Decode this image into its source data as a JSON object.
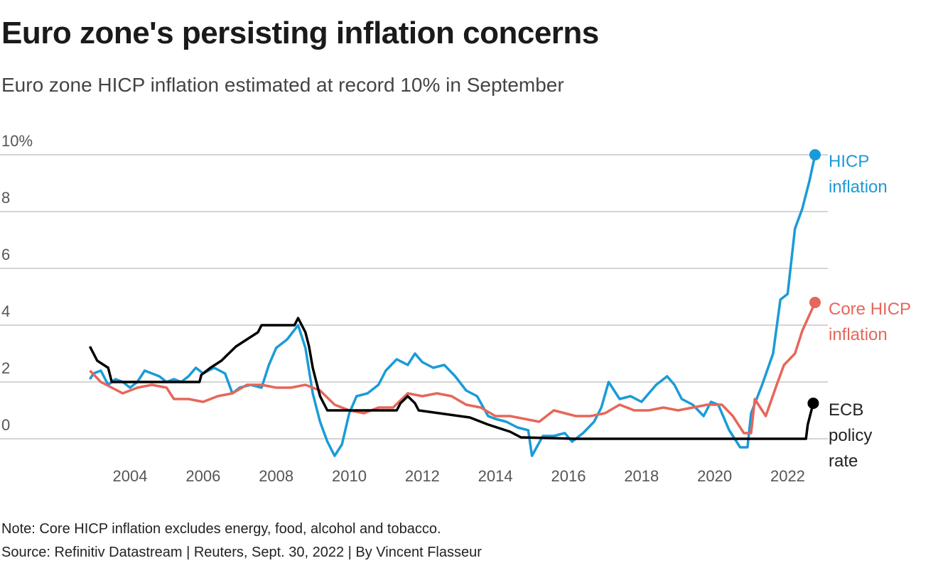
{
  "chart_data": {
    "type": "line",
    "title": "Euro zone's persisting inflation concerns",
    "subtitle": "Euro zone HICP inflation estimated at record 10% in September",
    "note": "Note: Core HICP inflation excludes energy, food, alcohol and tobacco.",
    "source": "Source: Refinitiv Datastream | Reuters, Sept. 30, 2022 | By Vincent Flasseur",
    "xlim": [
      2000.44,
      2023.1
    ],
    "xticks": [
      2004,
      2006,
      2008,
      2010,
      2012,
      2014,
      2016,
      2018,
      2020,
      2022
    ],
    "ylim": [
      0,
      10
    ],
    "yticks": [
      0,
      2,
      4,
      6,
      8,
      {
        "value": 10,
        "label": "10%"
      }
    ],
    "grid": true,
    "series": [
      {
        "name": "HICP inflation",
        "color": "#1a9bd7",
        "x": [
          2002.9,
          2003.0,
          2003.2,
          2003.4,
          2003.6,
          2003.8,
          2004.0,
          2004.2,
          2004.4,
          2004.6,
          2004.8,
          2005.0,
          2005.2,
          2005.4,
          2005.6,
          2005.8,
          2006.0,
          2006.3,
          2006.6,
          2006.8,
          2007.0,
          2007.3,
          2007.6,
          2007.8,
          2008.0,
          2008.3,
          2008.6,
          2008.8,
          2009.0,
          2009.2,
          2009.4,
          2009.6,
          2009.8,
          2010.0,
          2010.2,
          2010.5,
          2010.8,
          2011.0,
          2011.3,
          2011.6,
          2011.8,
          2012.0,
          2012.3,
          2012.6,
          2012.9,
          2013.2,
          2013.5,
          2013.8,
          2014.0,
          2014.3,
          2014.6,
          2014.9,
          2015.0,
          2015.3,
          2015.6,
          2015.9,
          2016.1,
          2016.4,
          2016.7,
          2016.9,
          2017.1,
          2017.4,
          2017.7,
          2018.0,
          2018.4,
          2018.7,
          2018.9,
          2019.1,
          2019.4,
          2019.7,
          2019.9,
          2020.1,
          2020.4,
          2020.7,
          2020.9,
          2021.0,
          2021.3,
          2021.6,
          2021.8,
          2022.0,
          2022.2,
          2022.4,
          2022.6,
          2022.75
        ],
        "values": [
          2.1,
          2.3,
          2.4,
          1.9,
          2.1,
          2.0,
          1.8,
          2.0,
          2.4,
          2.3,
          2.2,
          2.0,
          2.1,
          2.0,
          2.2,
          2.5,
          2.3,
          2.5,
          2.3,
          1.6,
          1.8,
          1.9,
          1.8,
          2.6,
          3.2,
          3.5,
          4.0,
          3.2,
          1.6,
          0.6,
          -0.1,
          -0.6,
          -0.2,
          0.9,
          1.5,
          1.6,
          1.9,
          2.4,
          2.8,
          2.6,
          3.0,
          2.7,
          2.5,
          2.6,
          2.2,
          1.7,
          1.5,
          0.8,
          0.7,
          0.6,
          0.4,
          0.3,
          -0.6,
          0.1,
          0.1,
          0.2,
          -0.1,
          0.2,
          0.6,
          1.1,
          2.0,
          1.4,
          1.5,
          1.3,
          1.9,
          2.2,
          1.9,
          1.4,
          1.2,
          0.8,
          1.3,
          1.2,
          0.3,
          -0.3,
          -0.3,
          0.9,
          1.9,
          3.0,
          4.9,
          5.1,
          7.4,
          8.1,
          9.1,
          10.0
        ]
      },
      {
        "name": "Core HICP inflation",
        "color": "#e5675a",
        "x": [
          2002.9,
          2003.2,
          2003.5,
          2003.8,
          2004.2,
          2004.6,
          2005.0,
          2005.2,
          2005.6,
          2006.0,
          2006.4,
          2006.8,
          2007.2,
          2007.6,
          2008.0,
          2008.4,
          2008.8,
          2009.2,
          2009.6,
          2010.0,
          2010.4,
          2010.8,
          2011.2,
          2011.6,
          2012.0,
          2012.4,
          2012.8,
          2013.2,
          2013.6,
          2014.0,
          2014.4,
          2014.8,
          2015.2,
          2015.6,
          2015.9,
          2016.2,
          2016.6,
          2017.0,
          2017.4,
          2017.8,
          2018.2,
          2018.6,
          2019.0,
          2019.4,
          2019.8,
          2020.2,
          2020.5,
          2020.8,
          2021.0,
          2021.1,
          2021.4,
          2021.7,
          2021.9,
          2022.2,
          2022.4,
          2022.75
        ],
        "values": [
          2.4,
          2.0,
          1.8,
          1.6,
          1.8,
          1.9,
          1.8,
          1.4,
          1.4,
          1.3,
          1.5,
          1.6,
          1.9,
          1.9,
          1.8,
          1.8,
          1.9,
          1.7,
          1.2,
          1.0,
          0.9,
          1.1,
          1.1,
          1.6,
          1.5,
          1.6,
          1.5,
          1.2,
          1.1,
          0.8,
          0.8,
          0.7,
          0.6,
          1.0,
          0.9,
          0.8,
          0.8,
          0.9,
          1.2,
          1.0,
          1.0,
          1.1,
          1.0,
          1.1,
          1.2,
          1.2,
          0.8,
          0.2,
          0.2,
          1.4,
          0.8,
          1.9,
          2.6,
          3.0,
          3.8,
          4.8
        ]
      },
      {
        "name": "ECB policy rate",
        "color": "#000000",
        "x": [
          2002.9,
          2003.1,
          2003.4,
          2003.5,
          2005.9,
          2005.95,
          2006.2,
          2006.5,
          2006.7,
          2006.9,
          2007.2,
          2007.5,
          2007.6,
          2008.5,
          2008.6,
          2008.8,
          2008.9,
          2009.0,
          2009.1,
          2009.2,
          2009.3,
          2009.4,
          2011.3,
          2011.4,
          2011.6,
          2011.8,
          2011.9,
          2013.3,
          2013.8,
          2014.4,
          2014.7,
          2016.2,
          2022.5,
          2022.55,
          2022.7
        ],
        "values": [
          3.25,
          2.75,
          2.5,
          2.0,
          2.0,
          2.25,
          2.5,
          2.75,
          3.0,
          3.25,
          3.5,
          3.75,
          4.0,
          4.0,
          4.25,
          3.75,
          3.25,
          2.5,
          2.0,
          1.5,
          1.25,
          1.0,
          1.0,
          1.25,
          1.5,
          1.25,
          1.0,
          0.75,
          0.5,
          0.25,
          0.05,
          0.0,
          0.0,
          0.5,
          1.25
        ]
      }
    ]
  }
}
